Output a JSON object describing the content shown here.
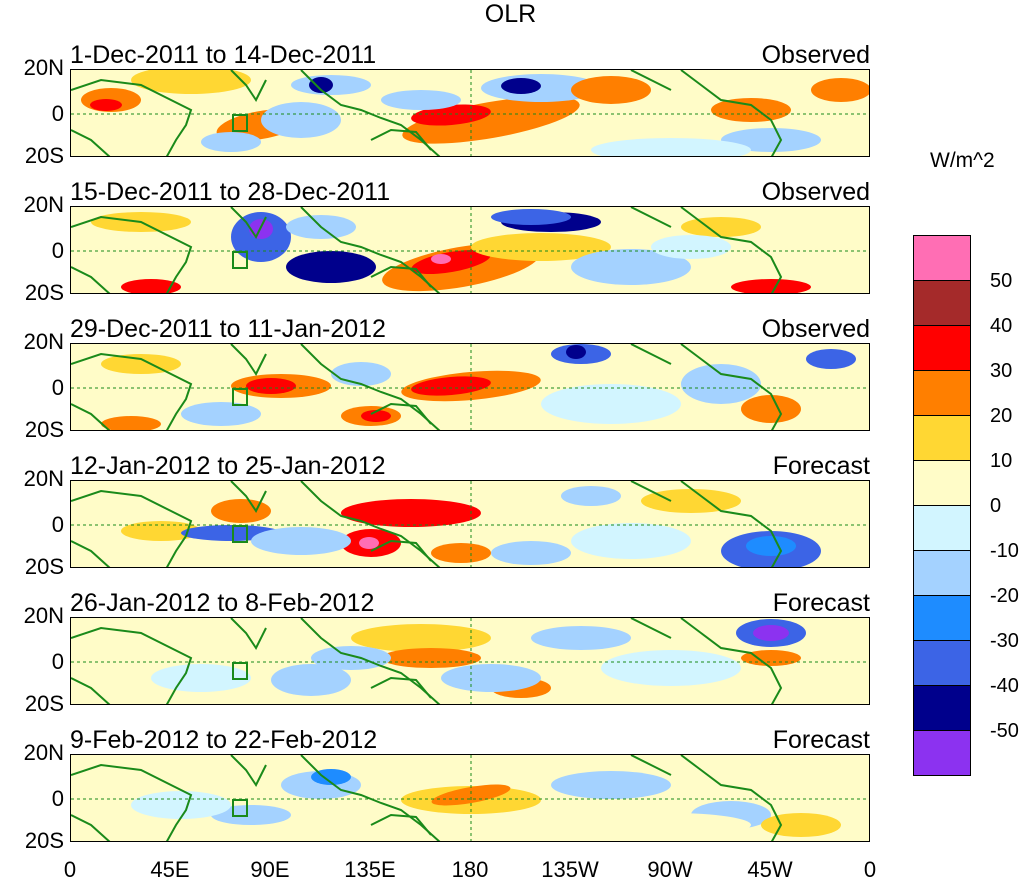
{
  "figure": {
    "title": "OLR",
    "units": "W/m^2",
    "x_tick_labels": [
      "0",
      "45E",
      "90E",
      "135E",
      "180",
      "135W",
      "90W",
      "45W",
      "0"
    ],
    "lat_labels": [
      "20N",
      "0",
      "20S"
    ]
  },
  "panels": [
    {
      "date_range": "1-Dec-2011 to 14-Dec-2011",
      "kind": "Observed"
    },
    {
      "date_range": "15-Dec-2011 to 28-Dec-2011",
      "kind": "Observed"
    },
    {
      "date_range": "29-Dec-2011 to 11-Jan-2012",
      "kind": "Observed"
    },
    {
      "date_range": "12-Jan-2012 to 25-Jan-2012",
      "kind": "Forecast"
    },
    {
      "date_range": "26-Jan-2012 to 8-Feb-2012",
      "kind": "Forecast"
    },
    {
      "date_range": "9-Feb-2012 to 22-Feb-2012",
      "kind": "Forecast"
    }
  ],
  "colorbar": {
    "labels": [
      "50",
      "40",
      "30",
      "20",
      "10",
      "0",
      "-10",
      "-20",
      "-30",
      "-40",
      "-50"
    ],
    "colors": [
      "#ff6eb4",
      "#a52a2a",
      "#ff0000",
      "#ff7f00",
      "#ffd733",
      "#fffcc8",
      "#d2f5ff",
      "#a4d2ff",
      "#1e8cff",
      "#3c64e6",
      "#00008c",
      "#8c32f0"
    ]
  },
  "colors": {
    "coast": "#1a8a1a",
    "background": "#ffffff"
  }
}
